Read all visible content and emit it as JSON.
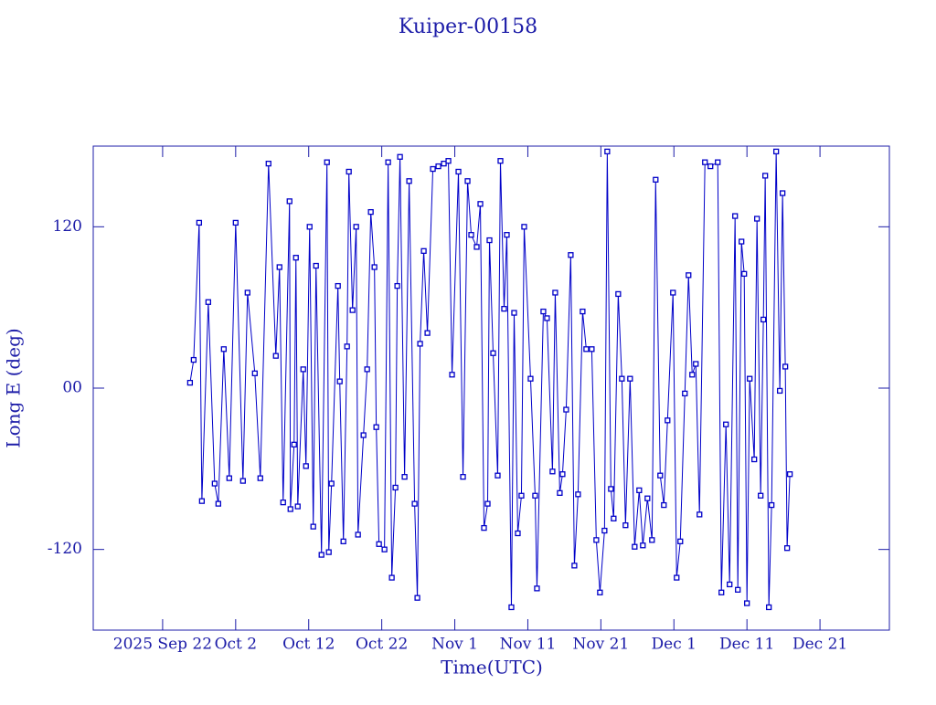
{
  "chart_data": {
    "type": "line",
    "title": "Kuiper-00158",
    "x_label": "Time(UTC)",
    "y_label": "Long E (deg)",
    "color": "#0000c8",
    "markers": true,
    "xlim": [
      "2025-09-12T12:00",
      "2025-12-30T12:00"
    ],
    "xticks": [
      {
        "value": "2025-09-22",
        "label": "2025 Sep 22"
      },
      {
        "value": "2025-10-02",
        "label": "Oct 2"
      },
      {
        "value": "2025-10-12",
        "label": "Oct 12"
      },
      {
        "value": "2025-10-22",
        "label": "Oct 22"
      },
      {
        "value": "2025-11-01",
        "label": "Nov 1"
      },
      {
        "value": "2025-11-11",
        "label": "Nov 11"
      },
      {
        "value": "2025-11-21",
        "label": "Nov 21"
      },
      {
        "value": "2025-12-01",
        "label": "Dec 1"
      },
      {
        "value": "2025-12-11",
        "label": "Dec 11"
      },
      {
        "value": "2025-12-21",
        "label": "Dec 21"
      }
    ],
    "ylim": [
      -180,
      180
    ],
    "yticks": [
      -120,
      {
        "value": 0,
        "label": "00"
      },
      120
    ],
    "x": [
      "2025-09-25T18:00",
      "2025-09-26T06:00",
      "2025-09-27T00:00",
      "2025-09-27T09:00",
      "2025-09-28T06:00",
      "2025-09-29T03:00",
      "2025-09-29T15:00",
      "2025-09-30T09:00",
      "2025-10-01T03:00",
      "2025-10-02T00:00",
      "2025-10-03T00:00",
      "2025-10-03T15:00",
      "2025-10-04T15:00",
      "2025-10-05T09:00",
      "2025-10-06T12:00",
      "2025-10-07T12:00",
      "2025-10-08T00:00",
      "2025-10-08T12:00",
      "2025-10-09T09:00",
      "2025-10-09T12:00",
      "2025-10-10T00:00",
      "2025-10-10T06:00",
      "2025-10-10T12:00",
      "2025-10-11T06:00",
      "2025-10-11T15:00",
      "2025-10-12T03:00",
      "2025-10-12T15:00",
      "2025-10-13T00:00",
      "2025-10-13T18:00",
      "2025-10-14T12:00",
      "2025-10-14T18:00",
      "2025-10-15T03:00",
      "2025-10-16T00:00",
      "2025-10-16T06:00",
      "2025-10-16T18:00",
      "2025-10-17T06:00",
      "2025-10-17T12:00",
      "2025-10-18T00:00",
      "2025-10-18T12:00",
      "2025-10-18T18:00",
      "2025-10-19T12:00",
      "2025-10-20T00:00",
      "2025-10-20T12:00",
      "2025-10-21T00:00",
      "2025-10-21T06:00",
      "2025-10-21T15:00",
      "2025-10-22T09:00",
      "2025-10-22T21:00",
      "2025-10-23T09:00",
      "2025-10-23T21:00",
      "2025-10-24T03:00",
      "2025-10-24T12:00",
      "2025-10-25T03:00",
      "2025-10-25T18:00",
      "2025-10-26T12:00",
      "2025-10-26T21:00",
      "2025-10-27T06:00",
      "2025-10-27T18:00",
      "2025-10-28T06:00",
      "2025-10-29T00:00",
      "2025-10-29T18:00",
      "2025-10-30T12:00",
      "2025-10-31T03:00",
      "2025-10-31T15:00",
      "2025-11-01T12:00",
      "2025-11-02T03:00",
      "2025-11-02T18:00",
      "2025-11-03T06:00",
      "2025-11-04T00:00",
      "2025-11-04T12:00",
      "2025-11-05T00:00",
      "2025-11-05T12:00",
      "2025-11-05T18:00",
      "2025-11-06T06:00",
      "2025-11-06T21:00",
      "2025-11-07T06:00",
      "2025-11-07T18:00",
      "2025-11-08T03:00",
      "2025-11-08T18:00",
      "2025-11-09T03:00",
      "2025-11-09T15:00",
      "2025-11-10T03:00",
      "2025-11-10T12:00",
      "2025-11-11T09:00",
      "2025-11-12T00:00",
      "2025-11-12T06:00",
      "2025-11-13T03:00",
      "2025-11-13T15:00",
      "2025-11-14T09:00",
      "2025-11-14T18:00",
      "2025-11-15T09:00",
      "2025-11-15T18:00",
      "2025-11-16T06:00",
      "2025-11-16T21:00",
      "2025-11-17T09:00",
      "2025-11-17T21:00",
      "2025-11-18T12:00",
      "2025-11-19T00:00",
      "2025-11-19T18:00",
      "2025-11-20T09:00",
      "2025-11-20T21:00",
      "2025-11-21T12:00",
      "2025-11-21T21:00",
      "2025-11-22T09:00",
      "2025-11-22T18:00",
      "2025-11-23T09:00",
      "2025-11-23T21:00",
      "2025-11-24T09:00",
      "2025-11-25T00:00",
      "2025-11-25T15:00",
      "2025-11-26T06:00",
      "2025-11-26T18:00",
      "2025-11-27T09:00",
      "2025-11-28T00:00",
      "2025-11-28T12:00",
      "2025-11-29T03:00",
      "2025-11-29T15:00",
      "2025-11-30T03:00",
      "2025-11-30T21:00",
      "2025-12-01T09:00",
      "2025-12-01T21:00",
      "2025-12-02T12:00",
      "2025-12-03T00:00",
      "2025-12-03T12:00",
      "2025-12-04T00:00",
      "2025-12-04T12:00",
      "2025-12-05T06:00",
      "2025-12-06T00:00",
      "2025-12-07T00:00",
      "2025-12-07T12:00",
      "2025-12-08T03:00",
      "2025-12-08T15:00",
      "2025-12-09T09:00",
      "2025-12-09T18:00",
      "2025-12-10T06:00",
      "2025-12-10T15:00",
      "2025-12-11T00:00",
      "2025-12-11T09:00",
      "2025-12-12T00:00",
      "2025-12-12T09:00",
      "2025-12-12T21:00",
      "2025-12-13T06:00",
      "2025-12-13T12:00",
      "2025-12-14T00:00",
      "2025-12-14T09:00",
      "2025-12-15T00:00",
      "2025-12-15T12:00",
      "2025-12-15T21:00",
      "2025-12-16T06:00",
      "2025-12-16T12:00",
      "2025-12-16T21:00"
    ],
    "values": [
      4,
      21,
      123,
      -84,
      64,
      -71,
      -86,
      29,
      -67,
      123,
      -69,
      71,
      11,
      -67,
      167,
      24,
      90,
      -85,
      139,
      -90,
      -42,
      97,
      -88,
      14,
      -58,
      120,
      -103,
      91,
      -124,
      168,
      -122,
      -71,
      76,
      5,
      -114,
      31,
      161,
      58,
      120,
      -109,
      -35,
      14,
      131,
      90,
      -29,
      -116,
      -120,
      168,
      -141,
      -74,
      76,
      172,
      -66,
      154,
      -86,
      -156,
      33,
      102,
      41,
      163,
      165,
      167,
      169,
      10,
      161,
      -66,
      154,
      114,
      105,
      137,
      -104,
      -86,
      110,
      26,
      -65,
      169,
      59,
      114,
      -163,
      56,
      -108,
      -80,
      120,
      7,
      -80,
      -149,
      57,
      52,
      -62,
      71,
      -78,
      -64,
      -16,
      99,
      -132,
      -79,
      57,
      29,
      29,
      -113,
      -152,
      -106,
      176,
      -75,
      -97,
      70,
      7,
      -102,
      7,
      -118,
      -76,
      -117,
      -82,
      -113,
      155,
      -65,
      -87,
      -24,
      71,
      -141,
      -114,
      -4,
      84,
      10,
      18,
      -94,
      168,
      165,
      168,
      -152,
      -27,
      -146,
      128,
      -150,
      109,
      85,
      -160,
      7,
      -53,
      126,
      -80,
      51,
      158,
      -163,
      -87,
      176,
      -2,
      145,
      16,
      -119,
      -64
    ]
  }
}
